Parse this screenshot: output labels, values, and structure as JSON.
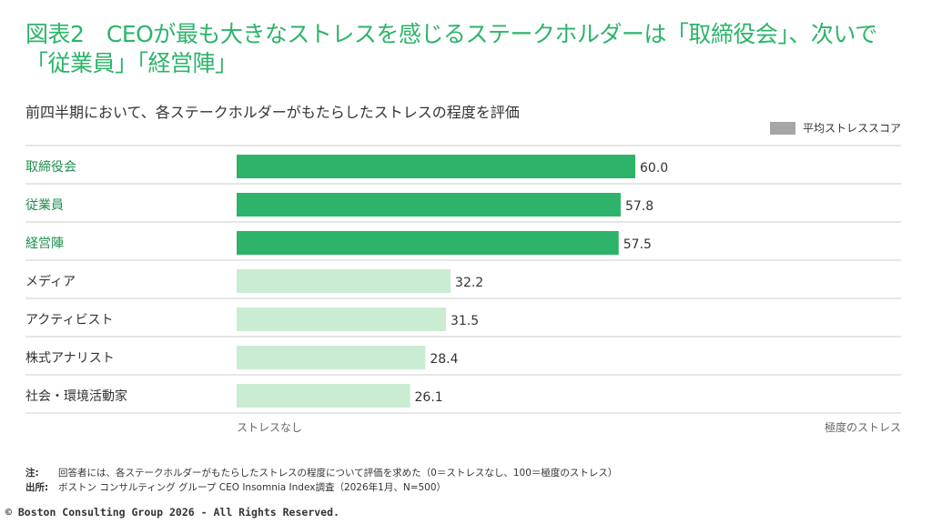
{
  "header": {
    "title": "図表2　CEOが最も大きなストレスを感じるステークホルダーは「取締役会」、次いで「従業員」「経営陣」",
    "subtitle": "前四半期において、各ステークホルダーがもたらしたストレスの程度を評価"
  },
  "colors": {
    "highlight_bar": "#2db46a",
    "other_bar": "#c9ecd3",
    "highlight_label": "#1f8f4d",
    "other_label": "#333333",
    "legend_swatch": "#a6a6a6"
  },
  "chart_data": {
    "type": "bar",
    "orientation": "horizontal",
    "categories": [
      "取締役会",
      "従業員",
      "経営陣",
      "メディア",
      "アクティビスト",
      "株式アナリスト",
      "社会・環境活動家"
    ],
    "values": [
      60.0,
      57.8,
      57.5,
      32.2,
      31.5,
      28.4,
      26.1
    ],
    "value_labels": [
      "60.0",
      "57.8",
      "57.5",
      "32.2",
      "31.5",
      "28.4",
      "26.1"
    ],
    "highlighted": [
      true,
      true,
      true,
      false,
      false,
      false,
      false
    ],
    "xlim": [
      0,
      100
    ],
    "x_axis_left_label": "ストレスなし",
    "x_axis_right_label": "極度のストレス",
    "legend": [
      {
        "name": "平均ストレススコア",
        "color": "#a6a6a6"
      }
    ],
    "legend_position": "top-right",
    "grid": false
  },
  "footer": {
    "note_key": "注:",
    "note_text": "回答者には、各ステークホルダーがもたらしたストレスの程度について評価を求めた（0＝ストレスなし、100＝極度のストレス）",
    "source_key": "出所:",
    "source_text": "ボストン コンサルティング グループ CEO Insomnia Index調査（2026年1月、N=500）",
    "copyright": "© Boston Consulting Group 2026 - All Rights Reserved."
  }
}
